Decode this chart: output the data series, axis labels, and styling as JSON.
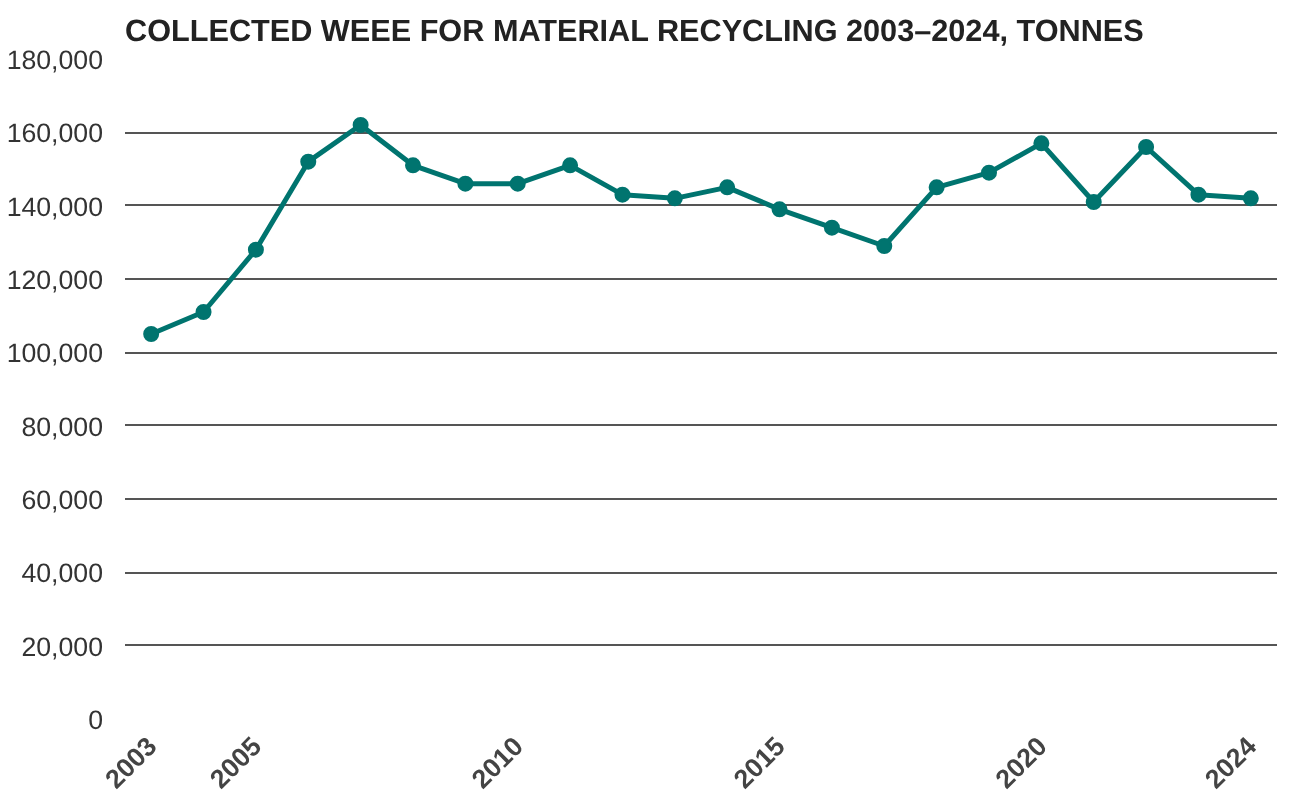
{
  "chart_data": {
    "type": "line",
    "title": "COLLECTED WEEE FOR MATERIAL RECYCLING 2003–2024, TONNES",
    "x": [
      2003,
      2004,
      2005,
      2006,
      2007,
      2008,
      2009,
      2010,
      2011,
      2012,
      2013,
      2014,
      2015,
      2016,
      2017,
      2018,
      2019,
      2020,
      2021,
      2022,
      2023,
      2024
    ],
    "series": [
      {
        "color": "#00746f",
        "values": [
          105000,
          111000,
          128000,
          152000,
          162000,
          151000,
          146000,
          146000,
          151000,
          143000,
          142000,
          145000,
          139000,
          134000,
          129000,
          145000,
          149000,
          157000,
          141000,
          156000,
          143000,
          142000
        ]
      }
    ],
    "xlim": [
      2002.5,
      2024.5
    ],
    "xticks": [
      2003,
      2005,
      2010,
      2015,
      2020,
      2024
    ],
    "ylim": [
      0,
      180000
    ],
    "yticks": [
      {
        "value": 0,
        "label": "0"
      },
      {
        "value": 20000,
        "label": "20,000"
      },
      {
        "value": 40000,
        "label": "40,000"
      },
      {
        "value": 60000,
        "label": "60,000"
      },
      {
        "value": 80000,
        "label": "80,000"
      },
      {
        "value": 100000,
        "label": "100,000"
      },
      {
        "value": 120000,
        "label": "120,000"
      },
      {
        "value": 140000,
        "label": "140,000"
      },
      {
        "value": 160000,
        "label": "160,000"
      },
      {
        "value": 180000,
        "label": "180,000"
      }
    ],
    "grid": "y",
    "marker": "circle",
    "line_style": "solid"
  }
}
